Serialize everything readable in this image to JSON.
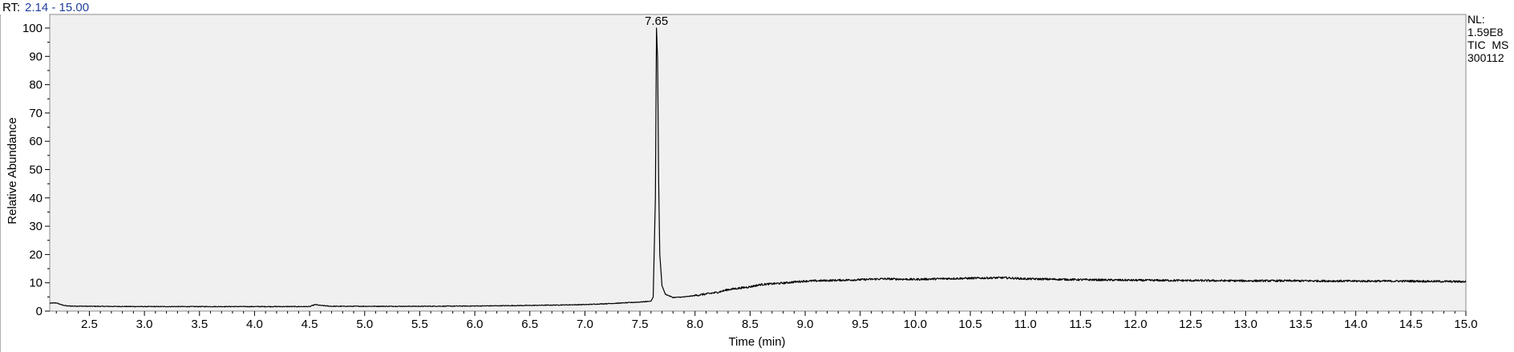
{
  "header": {
    "rt_prefix": "RT:",
    "rt_range": "2.14 - 15.00"
  },
  "info": {
    "nl_label": "NL:",
    "nl_value": "1.59E8",
    "scan_type": "TIC  MS",
    "file_name": "300112"
  },
  "colors": {
    "plot_bg": "#f0f0f0",
    "trace": "#000000",
    "rt_value": "#1f3f9f"
  },
  "chart_data": {
    "type": "line",
    "title": "",
    "xlabel": "Time (min)",
    "ylabel": "Relative Abundance",
    "xlim": [
      2.14,
      15.0
    ],
    "ylim": [
      0,
      100
    ],
    "x_ticks": [
      "2.5",
      "3.0",
      "3.5",
      "4.0",
      "4.5",
      "5.0",
      "5.5",
      "6.0",
      "6.5",
      "7.0",
      "7.5",
      "8.0",
      "8.5",
      "9.0",
      "9.5",
      "10.0",
      "10.5",
      "11.0",
      "11.5",
      "12.0",
      "12.5",
      "13.0",
      "13.5",
      "14.0",
      "14.5",
      "15.0"
    ],
    "y_ticks": [
      "0",
      "10",
      "20",
      "30",
      "40",
      "50",
      "60",
      "70",
      "80",
      "90",
      "100"
    ],
    "peak_labels": [
      {
        "x": 7.65,
        "y": 100,
        "label": "7.65"
      }
    ],
    "grid": false,
    "series": [
      {
        "x": [
          2.14,
          2.2,
          2.25,
          2.3,
          2.5,
          3.0,
          3.5,
          4.0,
          4.5,
          4.55,
          4.6,
          4.7,
          5.0,
          5.5,
          6.0,
          6.5,
          7.0,
          7.3,
          7.5,
          7.6,
          7.62,
          7.64,
          7.65,
          7.66,
          7.67,
          7.68,
          7.7,
          7.73,
          7.8,
          7.9,
          8.0,
          8.2,
          8.3,
          8.5,
          8.6,
          8.8,
          8.9,
          9.0,
          9.3,
          9.5,
          9.7,
          10.0,
          10.3,
          10.5,
          10.8,
          11.0,
          11.5,
          12.0,
          12.5,
          13.0,
          13.5,
          14.0,
          14.5,
          15.0
        ],
        "y": [
          2.8,
          2.9,
          2.2,
          1.8,
          1.7,
          1.6,
          1.6,
          1.6,
          1.6,
          2.3,
          2.0,
          1.7,
          1.7,
          1.7,
          1.8,
          2.0,
          2.3,
          2.8,
          3.2,
          3.5,
          5.0,
          40.0,
          100,
          89,
          45,
          20,
          9,
          6,
          4.8,
          5.0,
          5.5,
          6.6,
          7.6,
          8.6,
          9.4,
          9.9,
          10.3,
          10.6,
          10.9,
          11.1,
          11.4,
          11.2,
          11.5,
          11.6,
          11.8,
          11.4,
          11.1,
          10.9,
          10.8,
          10.7,
          10.7,
          10.6,
          10.6,
          10.4
        ]
      }
    ]
  }
}
